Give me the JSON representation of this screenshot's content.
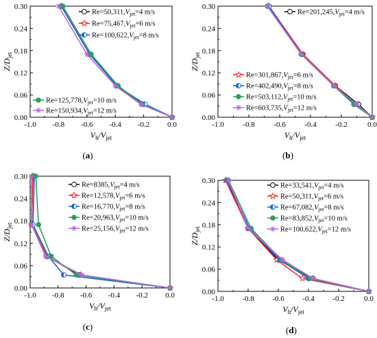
{
  "colors": {
    "black": "#1a1a1a",
    "red": "#ff2a2a",
    "blue": "#1565d8",
    "green": "#2e9e5a",
    "purple": "#b36be0"
  },
  "marker_names": {
    "black": "open-circle",
    "red": "star",
    "blue": "half-filled-circle",
    "green": "filled-circle",
    "purple": "asterisk"
  },
  "chart_data": [
    {
      "type": "line",
      "panel_label": "a",
      "ylabel_main": "Z/D",
      "ylabel_sub": "jet",
      "xlabel_main": "V",
      "xlabel_sub1": "h",
      "xlabel_mid": "/V",
      "xlabel_sub2": "jet",
      "xlim": [
        -1.0,
        0.0
      ],
      "ylim": [
        0.0,
        0.3
      ],
      "x_ticks": [
        "-1.0",
        "-0.8",
        "-0.6",
        "-0.4",
        "-0.2",
        "0.0"
      ],
      "y_ticks": [
        "0.00",
        "0.06",
        "0.12",
        "0.18",
        "0.24",
        "0.30"
      ],
      "series": [
        {
          "name": "Re=50,311,V_jet=4 m/s",
          "re": "Re=50,311,",
          "vtext": "=4 m/s",
          "color": "black",
          "marker": "open-circle",
          "x": [
            -0.78,
            -0.58,
            -0.39,
            -0.2,
            0.0
          ],
          "y": [
            0.3,
            0.17,
            0.085,
            0.035,
            0.0
          ]
        },
        {
          "name": "Re=75,467,V_jet=6 m/s",
          "re": "Re=75,467,",
          "vtext": "=6 m/s",
          "color": "red",
          "marker": "star",
          "x": [
            -0.78,
            -0.58,
            -0.39,
            -0.21,
            0.0
          ],
          "y": [
            0.3,
            0.17,
            0.085,
            0.035,
            0.0
          ]
        },
        {
          "name": "Re=100,622,V_jet=8 m/s",
          "re": "Re=100,622,",
          "vtext": "=8 m/s",
          "color": "blue",
          "marker": "half-filled-circle",
          "x": [
            -0.78,
            -0.58,
            -0.39,
            -0.19,
            0.0
          ],
          "y": [
            0.3,
            0.17,
            0.085,
            0.035,
            0.0
          ]
        },
        {
          "name": "Re=125,778,V_jet=10 m/s",
          "re": "Re=125,778,",
          "vtext": "=10 m/s",
          "color": "green",
          "marker": "filled-circle",
          "x": [
            -0.77,
            -0.57,
            -0.38,
            -0.21,
            0.0
          ],
          "y": [
            0.3,
            0.17,
            0.085,
            0.035,
            0.0
          ]
        },
        {
          "name": "Re=150,934,V_jet=12 m/s",
          "re": "Re=150,934,",
          "vtext": "=12 m/s",
          "color": "purple",
          "marker": "asterisk",
          "x": [
            -0.8,
            -0.6,
            -0.4,
            -0.22,
            0.0
          ],
          "y": [
            0.3,
            0.17,
            0.085,
            0.035,
            0.0
          ]
        }
      ],
      "legend_groups": [
        [
          0,
          1,
          2
        ],
        [
          3,
          4
        ]
      ]
    },
    {
      "type": "line",
      "panel_label": "b",
      "ylabel_main": "Z/D",
      "ylabel_sub": "jet",
      "xlabel_main": "V",
      "xlabel_sub1": "h",
      "xlabel_mid": "/V",
      "xlabel_sub2": "jet",
      "xlim": [
        -1.0,
        0.0
      ],
      "ylim": [
        0.0,
        0.3
      ],
      "x_ticks": [
        "-1.0",
        "-0.8",
        "-0.6",
        "-0.4",
        "-0.2",
        "0.0"
      ],
      "y_ticks": [
        "0.00",
        "0.06",
        "0.12",
        "0.18",
        "0.24",
        "0.30"
      ],
      "series": [
        {
          "name": "Re=201,245,V_jet=4 m/s",
          "re": "Re=201,245,",
          "vtext": "=4 m/s",
          "color": "black",
          "marker": "open-circle",
          "x": [
            -0.67,
            -0.45,
            -0.24,
            -0.09,
            0.0
          ],
          "y": [
            0.3,
            0.17,
            0.085,
            0.035,
            0.0
          ]
        },
        {
          "name": "Re=301,867,V_jet=6 m/s",
          "re": "Re=301,867,",
          "vtext": "=6 m/s",
          "color": "red",
          "marker": "star",
          "x": [
            -0.67,
            -0.45,
            -0.24,
            -0.11,
            0.0
          ],
          "y": [
            0.3,
            0.17,
            0.085,
            0.035,
            0.0
          ]
        },
        {
          "name": "Re=402,490,V_jet=8 m/s",
          "re": "Re=402,490,",
          "vtext": "=8 m/s",
          "color": "blue",
          "marker": "half-filled-circle",
          "x": [
            -0.67,
            -0.46,
            -0.25,
            -0.11,
            0.0
          ],
          "y": [
            0.3,
            0.17,
            0.085,
            0.035,
            0.0
          ]
        },
        {
          "name": "Re=503,112,V_jet=10 m/s",
          "re": "Re=503,112,",
          "vtext": "=10 m/s",
          "color": "green",
          "marker": "filled-circle",
          "x": [
            -0.68,
            -0.46,
            -0.25,
            -0.12,
            0.0
          ],
          "y": [
            0.3,
            0.17,
            0.085,
            0.035,
            0.0
          ]
        },
        {
          "name": "Re=603,735,V_jet=12 m/s",
          "re": "Re=603,735,",
          "vtext": "=12 m/s",
          "color": "purple",
          "marker": "asterisk",
          "x": [
            -0.68,
            -0.46,
            -0.25,
            -0.1,
            0.0
          ],
          "y": [
            0.3,
            0.17,
            0.085,
            0.035,
            0.0
          ]
        }
      ],
      "legend_groups": [
        [
          0
        ],
        [
          1,
          2,
          3,
          4
        ]
      ]
    },
    {
      "type": "line",
      "panel_label": "c",
      "ylabel_main": "Z/D",
      "ylabel_sub": "jet",
      "xlabel_main": "V",
      "xlabel_sub1": "h",
      "xlabel_mid": "/V",
      "xlabel_sub2": "jet",
      "xlim": [
        -1.0,
        0.0
      ],
      "ylim": [
        0.0,
        0.3
      ],
      "x_ticks": [
        "-1.0",
        "-0.8",
        "-0.6",
        "-0.4",
        "-0.2",
        "0.0"
      ],
      "y_ticks": [
        "0.00",
        "0.06",
        "0.12",
        "0.18",
        "0.24",
        "0.30"
      ],
      "series": [
        {
          "name": "Re=8385,V_jet=4 m/s",
          "re": "Re=8385,",
          "vtext": "=4 m/s",
          "color": "black",
          "marker": "open-circle",
          "x": [
            -0.98,
            -0.99,
            -0.88,
            -0.65,
            0.0
          ],
          "y": [
            0.3,
            0.17,
            0.085,
            0.035,
            0.0
          ]
        },
        {
          "name": "Re=12,578,V_jet=6 m/s",
          "re": "Re=12,578,",
          "vtext": "=6 m/s",
          "color": "red",
          "marker": "star",
          "x": [
            -0.98,
            -0.99,
            -0.88,
            -0.64,
            0.0
          ],
          "y": [
            0.3,
            0.17,
            0.085,
            0.035,
            0.0
          ]
        },
        {
          "name": "Re=16,770,V_jet=8 m/s",
          "re": "Re=16,770,",
          "vtext": "=8 m/s",
          "color": "blue",
          "marker": "half-filled-circle",
          "x": [
            -0.97,
            -0.98,
            -0.87,
            -0.76,
            0.0
          ],
          "y": [
            0.3,
            0.17,
            0.085,
            0.035,
            0.0
          ]
        },
        {
          "name": "Re=20,963,V_jet=10 m/s",
          "re": "Re=20,963,",
          "vtext": "=10 m/s",
          "color": "green",
          "marker": "filled-circle",
          "x": [
            -0.96,
            -0.94,
            -0.85,
            -0.67,
            0.0
          ],
          "y": [
            0.3,
            0.17,
            0.085,
            0.035,
            0.0
          ]
        },
        {
          "name": "Re=25,156,V_jet=12 m/s",
          "re": "Re=25,156,",
          "vtext": "=12 m/s",
          "color": "purple",
          "marker": "asterisk",
          "x": [
            -0.99,
            -0.99,
            -0.89,
            -0.63,
            0.0
          ],
          "y": [
            0.3,
            0.17,
            0.085,
            0.035,
            0.0
          ]
        }
      ],
      "legend_groups": [
        [
          0,
          1,
          2,
          3,
          4
        ]
      ]
    },
    {
      "type": "line",
      "panel_label": "d",
      "ylabel_main": "Z/D",
      "ylabel_sub": "jet",
      "xlabel_main": "V",
      "xlabel_sub1": "h",
      "xlabel_mid": "/V",
      "xlabel_sub2": "jet",
      "xlim": [
        -1.0,
        0.0
      ],
      "ylim": [
        0.0,
        0.3
      ],
      "x_ticks": [
        "-1.0",
        "-0.8",
        "-0.6",
        "-0.4",
        "-0.2",
        "0.0"
      ],
      "y_ticks": [
        "0.00",
        "0.06",
        "0.12",
        "0.18",
        "0.24",
        "0.30"
      ],
      "series": [
        {
          "name": "Re=33,541,V_jet=4 m/s",
          "re": "Re=33,541,",
          "vtext": "=4 m/s",
          "color": "black",
          "marker": "open-circle",
          "x": [
            -0.94,
            -0.8,
            -0.6,
            -0.37,
            0.0
          ],
          "y": [
            0.3,
            0.17,
            0.085,
            0.035,
            0.0
          ]
        },
        {
          "name": "Re=50,311,V_jet=6 m/s",
          "re": "Re=50,311,",
          "vtext": "=6 m/s",
          "color": "red",
          "marker": "star",
          "x": [
            -0.95,
            -0.8,
            -0.61,
            -0.44,
            0.0
          ],
          "y": [
            0.3,
            0.17,
            0.085,
            0.035,
            0.0
          ]
        },
        {
          "name": "Re=67,082,V_jet=8 m/s",
          "re": "Re=67,082,",
          "vtext": "=8 m/s",
          "color": "blue",
          "marker": "half-filled-circle",
          "x": [
            -0.94,
            -0.79,
            -0.59,
            -0.4,
            0.0
          ],
          "y": [
            0.3,
            0.17,
            0.085,
            0.035,
            0.0
          ]
        },
        {
          "name": "Re=83,852,V_jet=10 m/s",
          "re": "Re=83,852,",
          "vtext": "=10 m/s",
          "color": "green",
          "marker": "filled-circle",
          "x": [
            -0.93,
            -0.78,
            -0.58,
            -0.39,
            0.0
          ],
          "y": [
            0.3,
            0.17,
            0.085,
            0.035,
            0.0
          ]
        },
        {
          "name": "Re=100,622,V_jet=12 m/s",
          "re": "Re=100,622,",
          "vtext": "=12 m/s",
          "color": "purple",
          "marker": "asterisk",
          "x": [
            -0.93,
            -0.8,
            -0.57,
            -0.37,
            0.0
          ],
          "y": [
            0.3,
            0.17,
            0.085,
            0.035,
            0.0
          ]
        }
      ],
      "legend_groups": [
        [
          0,
          1,
          2,
          3,
          4
        ]
      ]
    }
  ]
}
